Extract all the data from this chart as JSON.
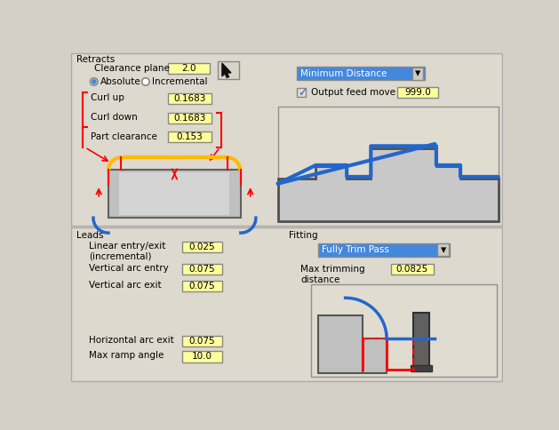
{
  "bg_color": "#d4d0c8",
  "panel_color": "#e8e4d8",
  "yellow_field": "#ffff99",
  "blue_highlight": "#4488dd",
  "white": "#ffffff",
  "red": "#cc0000",
  "blue_line": "#2266cc",
  "yellow_line": "#ffbb00",
  "retracts_label": "Retracts",
  "clearance_plane_label": "Clearance plane",
  "clearance_plane_value": "2.0",
  "absolute_label": "Absolute",
  "incremental_label": "Incremental",
  "curl_up_label": "Curl up",
  "curl_up_value": "0.1683",
  "curl_down_label": "Curl down",
  "curl_down_value": "0.1683",
  "part_clearance_label": "Part clearance",
  "part_clearance_value": "0.153",
  "min_distance_label": "Minimum Distance",
  "output_feed_label": "Output feed move",
  "output_feed_value": "999.0",
  "leads_label": "Leads",
  "linear_entry_label": "Linear entry/exit\n(incremental)",
  "linear_entry_value": "0.025",
  "vert_arc_entry_label": "Vertical arc entry",
  "vert_arc_entry_value": "0.075",
  "vert_arc_exit_label": "Vertical arc exit",
  "vert_arc_exit_value": "0.075",
  "horiz_arc_exit_label": "Horizontal arc exit",
  "horiz_arc_exit_value": "0.075",
  "max_ramp_label": "Max ramp angle",
  "max_ramp_value": "10.0",
  "fitting_label": "Fitting",
  "fully_trim_label": "Fully Trim Pass",
  "max_trim_label": "Max trimming\ndistance",
  "max_trim_value": "0.0825"
}
